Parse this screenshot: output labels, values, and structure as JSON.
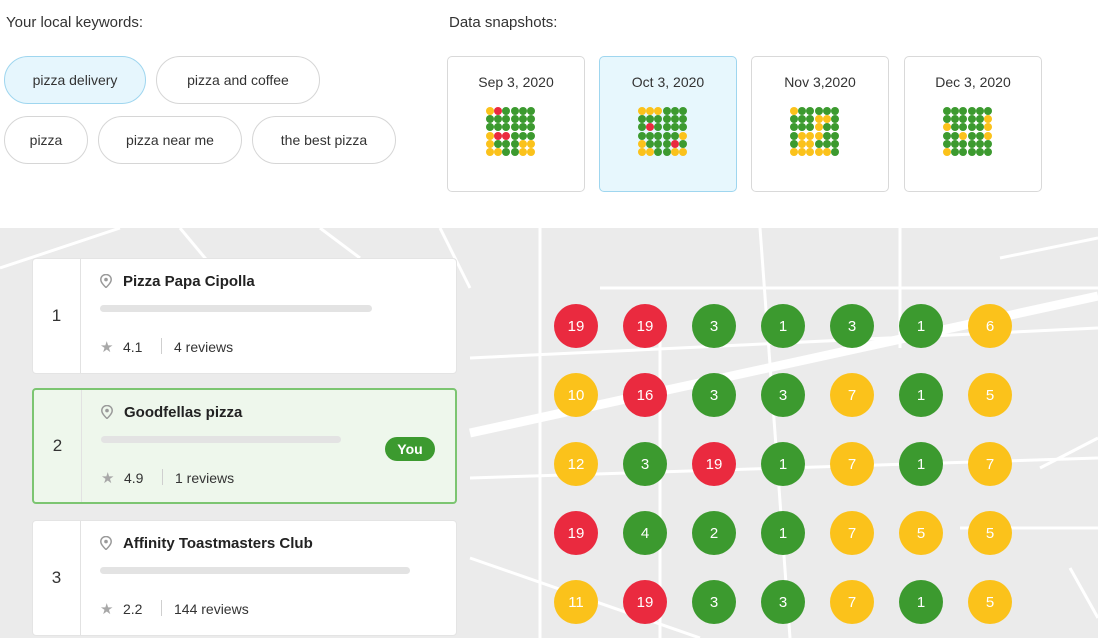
{
  "keywords_label": "Your local keywords:",
  "keywords": [
    {
      "label": "pizza delivery",
      "active": true
    },
    {
      "label": "pizza and coffee",
      "active": false
    },
    {
      "label": "pizza",
      "active": false
    },
    {
      "label": "pizza near me",
      "active": false
    },
    {
      "label": "the best pizza",
      "active": false
    }
  ],
  "snapshots_label": "Data snapshots:",
  "snapshots": [
    {
      "date": "Sep 3, 2020",
      "active": false,
      "grid": [
        "yrgggg",
        "gggggg",
        "gggggg",
        "yrrggg",
        "ygggyy",
        "yyggyy"
      ]
    },
    {
      "date": "Oct 3, 2020",
      "active": true,
      "grid": [
        "yyyggg",
        "gggggg",
        "grgggg",
        "gggggy",
        "ygggrg",
        "yyggyy"
      ]
    },
    {
      "date": "Nov 3,2020",
      "active": false,
      "grid": [
        "yggggg",
        "gggyyg",
        "gggygg",
        "gyyygg",
        "gyyggg",
        "yyyyyg"
      ]
    },
    {
      "date": "Dec 3, 2020",
      "active": false,
      "grid": [
        "gggggg",
        "gggggy",
        "yggggy",
        "ggyggy",
        "gggggg",
        "yggggg"
      ]
    }
  ],
  "colors": {
    "red": "#ea2a3f",
    "green": "#3c9a2f",
    "yellow": "#fbc21b",
    "accent_bg": "#e6f6fd",
    "accent_border": "#9fd6ef",
    "you_badge": "#3c9a2f"
  },
  "results": [
    {
      "rank": "1",
      "name": "Pizza Papa Cipolla",
      "rating": "4.1",
      "reviews": "4 reviews",
      "you": false
    },
    {
      "rank": "2",
      "name": "Goodfellas pizza",
      "rating": "4.9",
      "reviews": "1 reviews",
      "you": true,
      "you_label": "You"
    },
    {
      "rank": "3",
      "name": "Affinity Toastmasters Club",
      "rating": "2.2",
      "reviews": "144 reviews",
      "you": false
    }
  ],
  "rank_grid": [
    [
      {
        "v": "19",
        "c": "red"
      },
      {
        "v": "19",
        "c": "red"
      },
      {
        "v": "3",
        "c": "green"
      },
      {
        "v": "1",
        "c": "green"
      },
      {
        "v": "3",
        "c": "green"
      },
      {
        "v": "1",
        "c": "green"
      },
      {
        "v": "6",
        "c": "yellow"
      }
    ],
    [
      {
        "v": "10",
        "c": "yellow"
      },
      {
        "v": "16",
        "c": "red"
      },
      {
        "v": "3",
        "c": "green"
      },
      {
        "v": "3",
        "c": "green"
      },
      {
        "v": "7",
        "c": "yellow"
      },
      {
        "v": "1",
        "c": "green"
      },
      {
        "v": "5",
        "c": "yellow"
      }
    ],
    [
      {
        "v": "12",
        "c": "yellow"
      },
      {
        "v": "3",
        "c": "green"
      },
      {
        "v": "19",
        "c": "red"
      },
      {
        "v": "1",
        "c": "green"
      },
      {
        "v": "7",
        "c": "yellow"
      },
      {
        "v": "1",
        "c": "green"
      },
      {
        "v": "7",
        "c": "yellow"
      }
    ],
    [
      {
        "v": "19",
        "c": "red"
      },
      {
        "v": "4",
        "c": "green"
      },
      {
        "v": "2",
        "c": "green"
      },
      {
        "v": "1",
        "c": "green"
      },
      {
        "v": "7",
        "c": "yellow"
      },
      {
        "v": "5",
        "c": "yellow"
      },
      {
        "v": "5",
        "c": "yellow"
      }
    ],
    [
      {
        "v": "11",
        "c": "yellow"
      },
      {
        "v": "19",
        "c": "red"
      },
      {
        "v": "3",
        "c": "green"
      },
      {
        "v": "3",
        "c": "green"
      },
      {
        "v": "7",
        "c": "yellow"
      },
      {
        "v": "1",
        "c": "green"
      },
      {
        "v": "5",
        "c": "yellow"
      }
    ]
  ]
}
